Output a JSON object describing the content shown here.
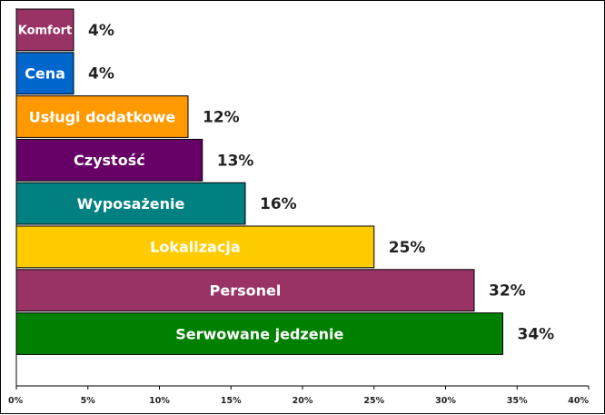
{
  "chart_data": {
    "type": "bar",
    "orientation": "horizontal",
    "categories": [
      "Komfort",
      "Cena",
      "Usługi dodatkowe",
      "Czystość",
      "Wyposażenie",
      "Lokalizacja",
      "Personel",
      "Serwowane jedzenie"
    ],
    "values": [
      4,
      4,
      12,
      13,
      16,
      25,
      32,
      34
    ],
    "value_labels": [
      "4%",
      "4%",
      "12%",
      "13%",
      "16%",
      "25%",
      "32%",
      "34%"
    ],
    "colors": [
      "#993366",
      "#0066cc",
      "#ff9900",
      "#660066",
      "#008080",
      "#ffcc00",
      "#993366",
      "#008000"
    ],
    "xlim": [
      0,
      40
    ],
    "x_ticks": [
      0,
      5,
      10,
      15,
      20,
      25,
      30,
      35,
      40
    ],
    "x_tick_labels": [
      "0%",
      "5%",
      "10%",
      "15%",
      "20%",
      "25%",
      "30%",
      "35%",
      "40%"
    ],
    "grid": false,
    "legend": "none",
    "title": "",
    "xlabel": "",
    "ylabel": ""
  }
}
